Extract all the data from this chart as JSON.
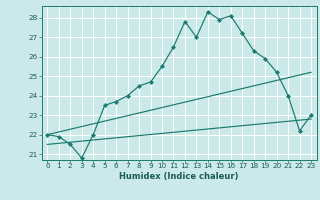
{
  "xlabel": "Humidex (Indice chaleur)",
  "bg_color": "#cce9ea",
  "grid_color": "#ffffff",
  "line_color": "#1a7a6e",
  "xlim": [
    -0.5,
    23.5
  ],
  "ylim": [
    20.7,
    28.6
  ],
  "xticks": [
    0,
    1,
    2,
    3,
    4,
    5,
    6,
    7,
    8,
    9,
    10,
    11,
    12,
    13,
    14,
    15,
    16,
    17,
    18,
    19,
    20,
    21,
    22,
    23
  ],
  "yticks": [
    21,
    22,
    23,
    24,
    25,
    26,
    27,
    28
  ],
  "main_x": [
    0,
    1,
    2,
    3,
    4,
    5,
    6,
    7,
    8,
    9,
    10,
    11,
    12,
    13,
    14,
    15,
    16,
    17,
    18,
    19,
    20,
    21,
    22,
    23
  ],
  "main_y": [
    22.0,
    21.9,
    21.5,
    20.8,
    22.0,
    23.5,
    23.7,
    24.0,
    24.5,
    24.7,
    25.5,
    26.5,
    27.8,
    27.0,
    28.3,
    27.9,
    28.1,
    27.2,
    26.3,
    25.9,
    25.2,
    24.0,
    22.2,
    23.0
  ],
  "line2_x": [
    0,
    23
  ],
  "line2_y": [
    22.0,
    25.2
  ],
  "line3_x": [
    0,
    23
  ],
  "line3_y": [
    21.5,
    22.8
  ],
  "xlabel_fontsize": 6.0,
  "tick_fontsize": 5.2
}
